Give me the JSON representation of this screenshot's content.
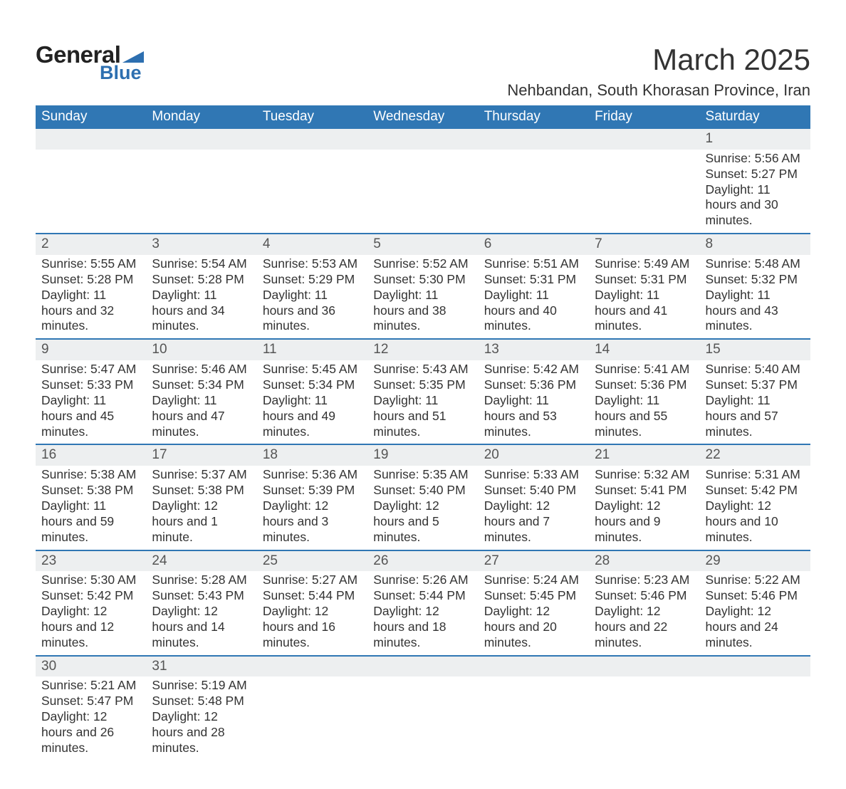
{
  "logo": {
    "text_general": "General",
    "text_blue": "Blue",
    "flag_color": "#2d6fb0"
  },
  "header": {
    "title": "March 2025",
    "subtitle": "Nehbandan, South Khorasan Province, Iran"
  },
  "styling": {
    "page_bg": "#ffffff",
    "header_row_bg": "#3077b4",
    "header_row_text": "#ffffff",
    "daynum_bg": "#edeff0",
    "daynum_border_top": "#3077b4",
    "body_text": "#333333",
    "title_fontsize": 42,
    "subtitle_fontsize": 22,
    "th_fontsize": 19,
    "cell_fontsize": 17.5
  },
  "weekdays": [
    "Sunday",
    "Monday",
    "Tuesday",
    "Wednesday",
    "Thursday",
    "Friday",
    "Saturday"
  ],
  "labels": {
    "sunrise": "Sunrise:",
    "sunset": "Sunset:",
    "daylight": "Daylight:"
  },
  "first_weekday_index": 6,
  "days": [
    {
      "n": 1,
      "sunrise": "5:56 AM",
      "sunset": "5:27 PM",
      "daylight": "11 hours and 30 minutes."
    },
    {
      "n": 2,
      "sunrise": "5:55 AM",
      "sunset": "5:28 PM",
      "daylight": "11 hours and 32 minutes."
    },
    {
      "n": 3,
      "sunrise": "5:54 AM",
      "sunset": "5:28 PM",
      "daylight": "11 hours and 34 minutes."
    },
    {
      "n": 4,
      "sunrise": "5:53 AM",
      "sunset": "5:29 PM",
      "daylight": "11 hours and 36 minutes."
    },
    {
      "n": 5,
      "sunrise": "5:52 AM",
      "sunset": "5:30 PM",
      "daylight": "11 hours and 38 minutes."
    },
    {
      "n": 6,
      "sunrise": "5:51 AM",
      "sunset": "5:31 PM",
      "daylight": "11 hours and 40 minutes."
    },
    {
      "n": 7,
      "sunrise": "5:49 AM",
      "sunset": "5:31 PM",
      "daylight": "11 hours and 41 minutes."
    },
    {
      "n": 8,
      "sunrise": "5:48 AM",
      "sunset": "5:32 PM",
      "daylight": "11 hours and 43 minutes."
    },
    {
      "n": 9,
      "sunrise": "5:47 AM",
      "sunset": "5:33 PM",
      "daylight": "11 hours and 45 minutes."
    },
    {
      "n": 10,
      "sunrise": "5:46 AM",
      "sunset": "5:34 PM",
      "daylight": "11 hours and 47 minutes."
    },
    {
      "n": 11,
      "sunrise": "5:45 AM",
      "sunset": "5:34 PM",
      "daylight": "11 hours and 49 minutes."
    },
    {
      "n": 12,
      "sunrise": "5:43 AM",
      "sunset": "5:35 PM",
      "daylight": "11 hours and 51 minutes."
    },
    {
      "n": 13,
      "sunrise": "5:42 AM",
      "sunset": "5:36 PM",
      "daylight": "11 hours and 53 minutes."
    },
    {
      "n": 14,
      "sunrise": "5:41 AM",
      "sunset": "5:36 PM",
      "daylight": "11 hours and 55 minutes."
    },
    {
      "n": 15,
      "sunrise": "5:40 AM",
      "sunset": "5:37 PM",
      "daylight": "11 hours and 57 minutes."
    },
    {
      "n": 16,
      "sunrise": "5:38 AM",
      "sunset": "5:38 PM",
      "daylight": "11 hours and 59 minutes."
    },
    {
      "n": 17,
      "sunrise": "5:37 AM",
      "sunset": "5:38 PM",
      "daylight": "12 hours and 1 minute."
    },
    {
      "n": 18,
      "sunrise": "5:36 AM",
      "sunset": "5:39 PM",
      "daylight": "12 hours and 3 minutes."
    },
    {
      "n": 19,
      "sunrise": "5:35 AM",
      "sunset": "5:40 PM",
      "daylight": "12 hours and 5 minutes."
    },
    {
      "n": 20,
      "sunrise": "5:33 AM",
      "sunset": "5:40 PM",
      "daylight": "12 hours and 7 minutes."
    },
    {
      "n": 21,
      "sunrise": "5:32 AM",
      "sunset": "5:41 PM",
      "daylight": "12 hours and 9 minutes."
    },
    {
      "n": 22,
      "sunrise": "5:31 AM",
      "sunset": "5:42 PM",
      "daylight": "12 hours and 10 minutes."
    },
    {
      "n": 23,
      "sunrise": "5:30 AM",
      "sunset": "5:42 PM",
      "daylight": "12 hours and 12 minutes."
    },
    {
      "n": 24,
      "sunrise": "5:28 AM",
      "sunset": "5:43 PM",
      "daylight": "12 hours and 14 minutes."
    },
    {
      "n": 25,
      "sunrise": "5:27 AM",
      "sunset": "5:44 PM",
      "daylight": "12 hours and 16 minutes."
    },
    {
      "n": 26,
      "sunrise": "5:26 AM",
      "sunset": "5:44 PM",
      "daylight": "12 hours and 18 minutes."
    },
    {
      "n": 27,
      "sunrise": "5:24 AM",
      "sunset": "5:45 PM",
      "daylight": "12 hours and 20 minutes."
    },
    {
      "n": 28,
      "sunrise": "5:23 AM",
      "sunset": "5:46 PM",
      "daylight": "12 hours and 22 minutes."
    },
    {
      "n": 29,
      "sunrise": "5:22 AM",
      "sunset": "5:46 PM",
      "daylight": "12 hours and 24 minutes."
    },
    {
      "n": 30,
      "sunrise": "5:21 AM",
      "sunset": "5:47 PM",
      "daylight": "12 hours and 26 minutes."
    },
    {
      "n": 31,
      "sunrise": "5:19 AM",
      "sunset": "5:48 PM",
      "daylight": "12 hours and 28 minutes."
    }
  ]
}
